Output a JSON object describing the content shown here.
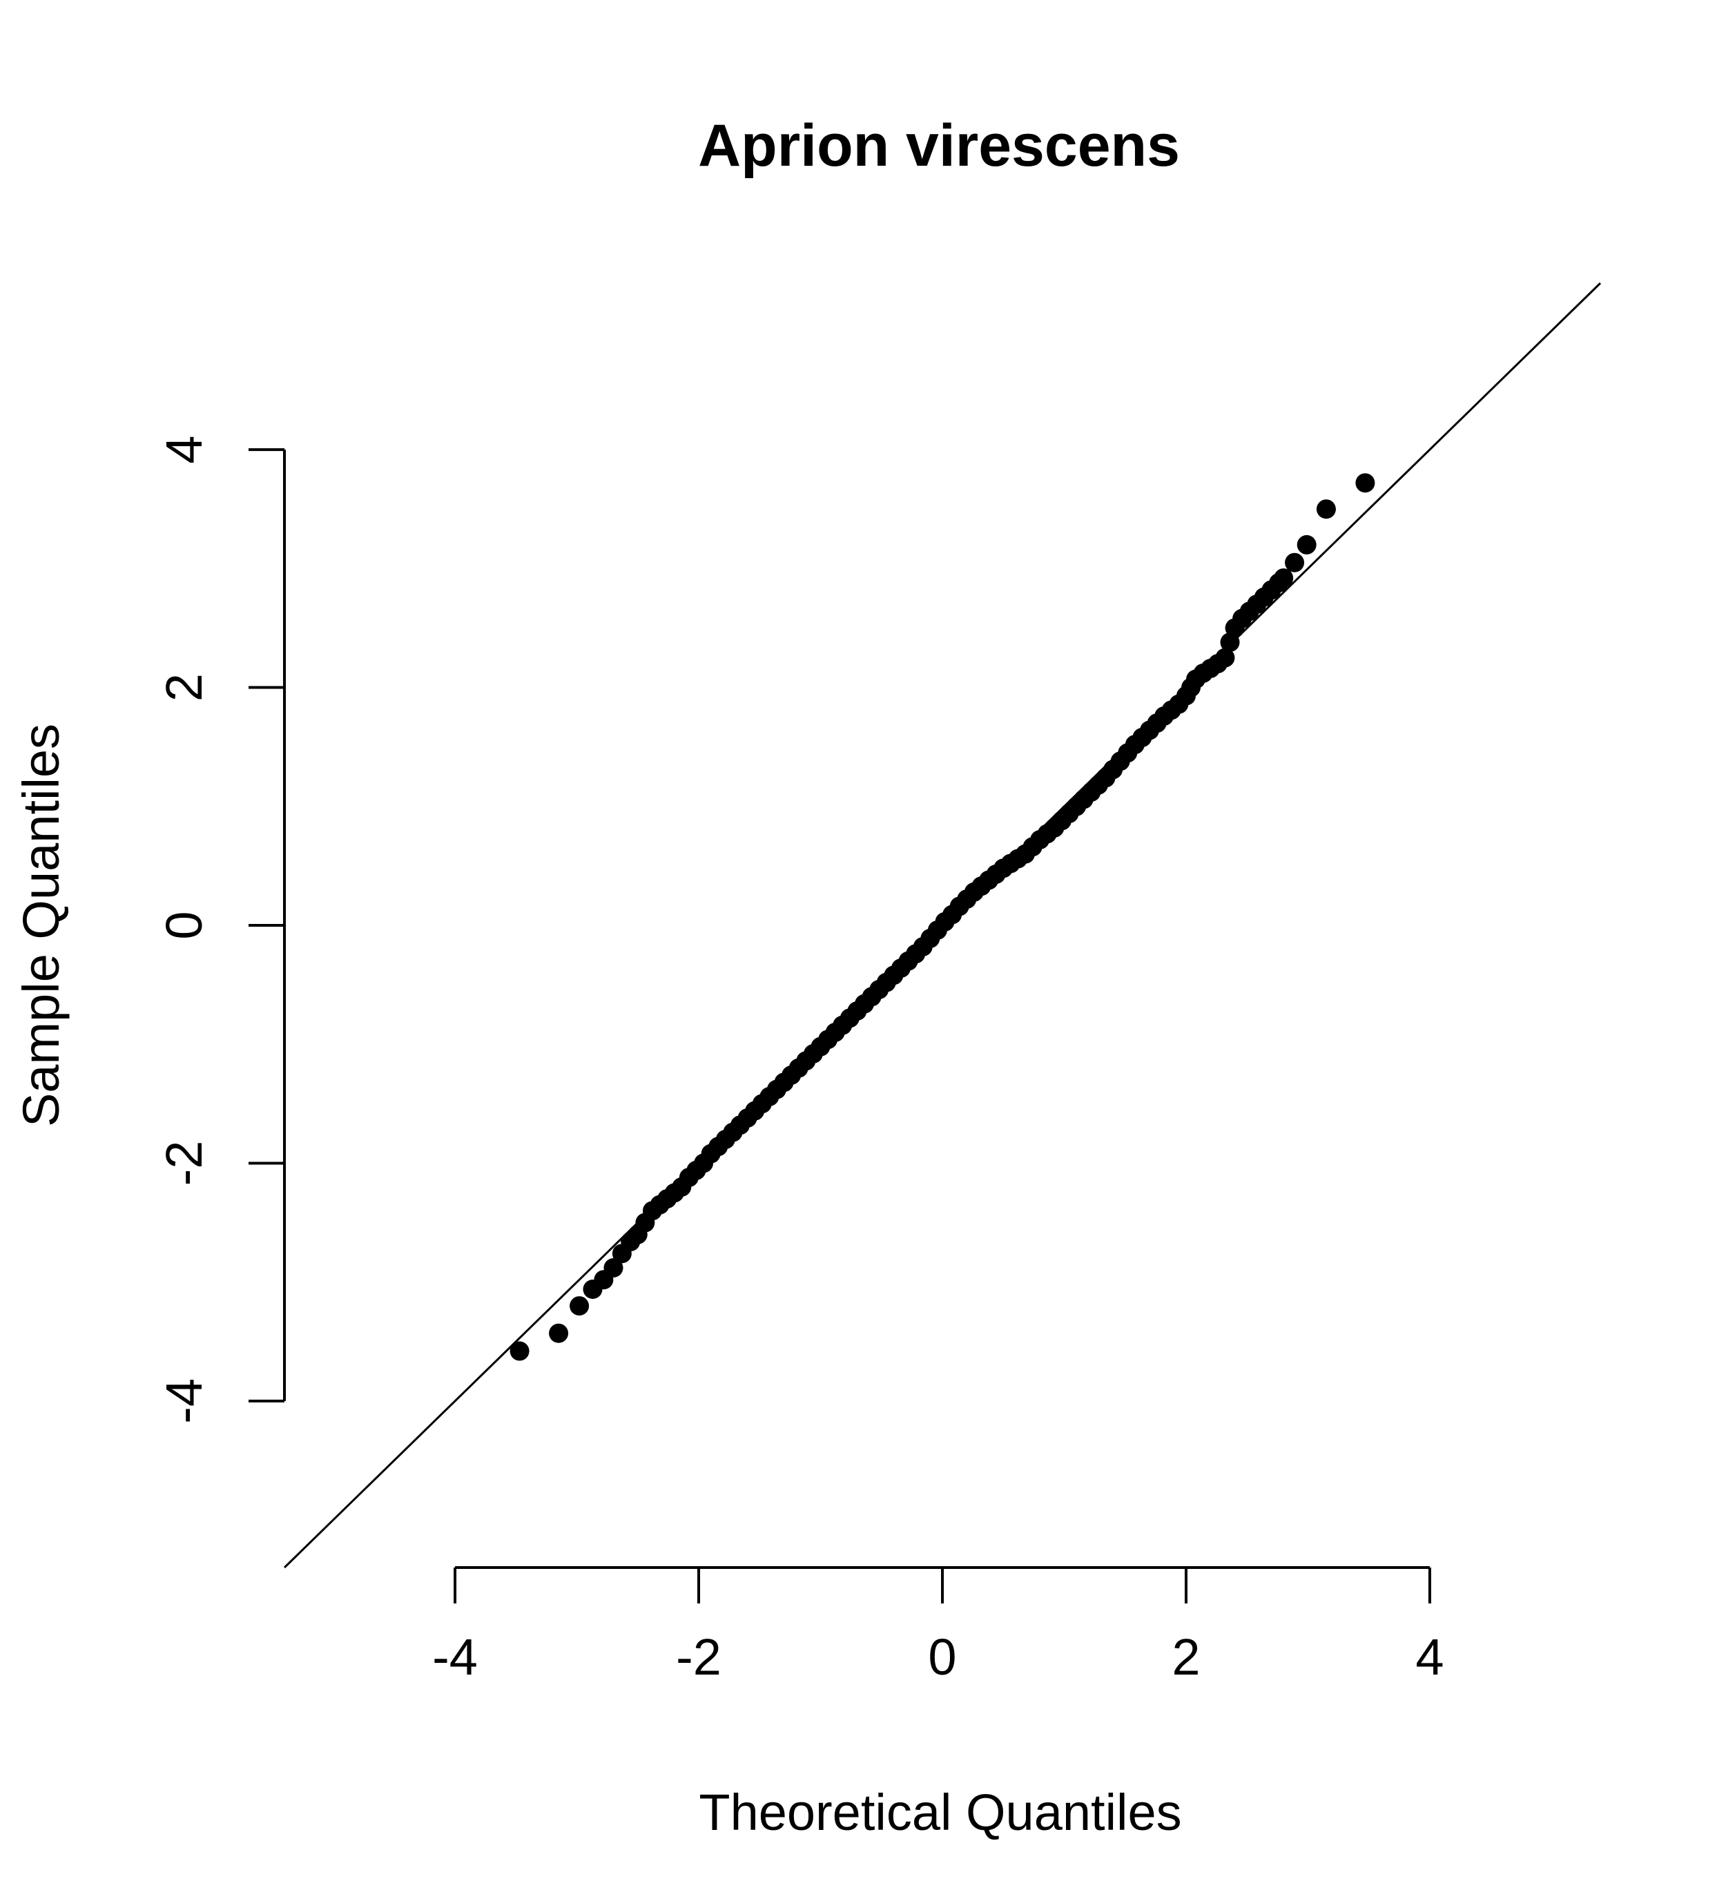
{
  "chart_data": {
    "type": "scatter",
    "title": "Aprion virescens",
    "xlabel": "Theoretical Quantiles",
    "ylabel": "Sample Quantiles",
    "xlim": [
      -5.4,
      5.4
    ],
    "ylim": [
      -5.4,
      5.4
    ],
    "x_ticks": [
      -4,
      -2,
      0,
      2,
      4
    ],
    "y_ticks": [
      -4,
      -2,
      0,
      2,
      4
    ],
    "x_tick_labels": [
      "-4",
      "-2",
      "0",
      "2",
      "4"
    ],
    "y_tick_labels": [
      "-4",
      "-2",
      "0",
      "2",
      "4"
    ],
    "grid": false,
    "reference_line": {
      "intercept": 0,
      "slope": 1
    },
    "points": [
      [
        -3.47,
        -3.58
      ],
      [
        -3.15,
        -3.43
      ],
      [
        -2.98,
        -3.2
      ],
      [
        -2.87,
        -3.06
      ],
      [
        -2.78,
        -2.98
      ],
      [
        -2.7,
        -2.88
      ],
      [
        -2.63,
        -2.76
      ],
      [
        -2.56,
        -2.66
      ],
      [
        -2.5,
        -2.6
      ],
      [
        -2.44,
        -2.5
      ],
      [
        -2.38,
        -2.4
      ],
      [
        -2.32,
        -2.35
      ],
      [
        -2.26,
        -2.3
      ],
      [
        -2.2,
        -2.25
      ],
      [
        -2.14,
        -2.2
      ],
      [
        -2.08,
        -2.12
      ],
      [
        -2.02,
        -2.06
      ],
      [
        -1.96,
        -2.0
      ],
      [
        -1.9,
        -1.92
      ],
      [
        -1.84,
        -1.86
      ],
      [
        -1.78,
        -1.8
      ],
      [
        -1.72,
        -1.74
      ],
      [
        -1.66,
        -1.68
      ],
      [
        -1.6,
        -1.62
      ],
      [
        -1.54,
        -1.56
      ],
      [
        -1.48,
        -1.5
      ],
      [
        -1.42,
        -1.44
      ],
      [
        -1.36,
        -1.38
      ],
      [
        -1.3,
        -1.32
      ],
      [
        -1.24,
        -1.26
      ],
      [
        -1.18,
        -1.2
      ],
      [
        -1.12,
        -1.14
      ],
      [
        -1.06,
        -1.08
      ],
      [
        -1.0,
        -1.02
      ],
      [
        -0.94,
        -0.96
      ],
      [
        -0.88,
        -0.9
      ],
      [
        -0.82,
        -0.84
      ],
      [
        -0.76,
        -0.78
      ],
      [
        -0.7,
        -0.72
      ],
      [
        -0.64,
        -0.66
      ],
      [
        -0.58,
        -0.6
      ],
      [
        -0.52,
        -0.54
      ],
      [
        -0.46,
        -0.48
      ],
      [
        -0.4,
        -0.42
      ],
      [
        -0.34,
        -0.36
      ],
      [
        -0.28,
        -0.3
      ],
      [
        -0.22,
        -0.24
      ],
      [
        -0.16,
        -0.18
      ],
      [
        -0.1,
        -0.11
      ],
      [
        -0.04,
        -0.04
      ],
      [
        0.02,
        0.03
      ],
      [
        0.08,
        0.09
      ],
      [
        0.14,
        0.16
      ],
      [
        0.2,
        0.22
      ],
      [
        0.26,
        0.28
      ],
      [
        0.32,
        0.33
      ],
      [
        0.38,
        0.38
      ],
      [
        0.44,
        0.43
      ],
      [
        0.5,
        0.48
      ],
      [
        0.56,
        0.52
      ],
      [
        0.62,
        0.56
      ],
      [
        0.68,
        0.6
      ],
      [
        0.74,
        0.66
      ],
      [
        0.8,
        0.72
      ],
      [
        0.86,
        0.77
      ],
      [
        0.92,
        0.82
      ],
      [
        0.98,
        0.88
      ],
      [
        1.04,
        0.94
      ],
      [
        1.1,
        1.0
      ],
      [
        1.16,
        1.06
      ],
      [
        1.22,
        1.12
      ],
      [
        1.28,
        1.18
      ],
      [
        1.34,
        1.24
      ],
      [
        1.4,
        1.31
      ],
      [
        1.46,
        1.38
      ],
      [
        1.52,
        1.45
      ],
      [
        1.58,
        1.52
      ],
      [
        1.64,
        1.58
      ],
      [
        1.7,
        1.64
      ],
      [
        1.76,
        1.7
      ],
      [
        1.82,
        1.76
      ],
      [
        1.88,
        1.81
      ],
      [
        1.94,
        1.86
      ],
      [
        2.0,
        1.93
      ],
      [
        2.04,
        2.0
      ],
      [
        2.08,
        2.07
      ],
      [
        2.14,
        2.12
      ],
      [
        2.2,
        2.16
      ],
      [
        2.26,
        2.2
      ],
      [
        2.32,
        2.25
      ],
      [
        2.36,
        2.38
      ],
      [
        2.4,
        2.5
      ],
      [
        2.46,
        2.58
      ],
      [
        2.52,
        2.64
      ],
      [
        2.58,
        2.7
      ],
      [
        2.64,
        2.76
      ],
      [
        2.7,
        2.82
      ],
      [
        2.76,
        2.88
      ],
      [
        2.8,
        2.92
      ],
      [
        2.89,
        3.05
      ],
      [
        2.99,
        3.2
      ],
      [
        3.15,
        3.5
      ],
      [
        3.47,
        3.72
      ]
    ]
  }
}
